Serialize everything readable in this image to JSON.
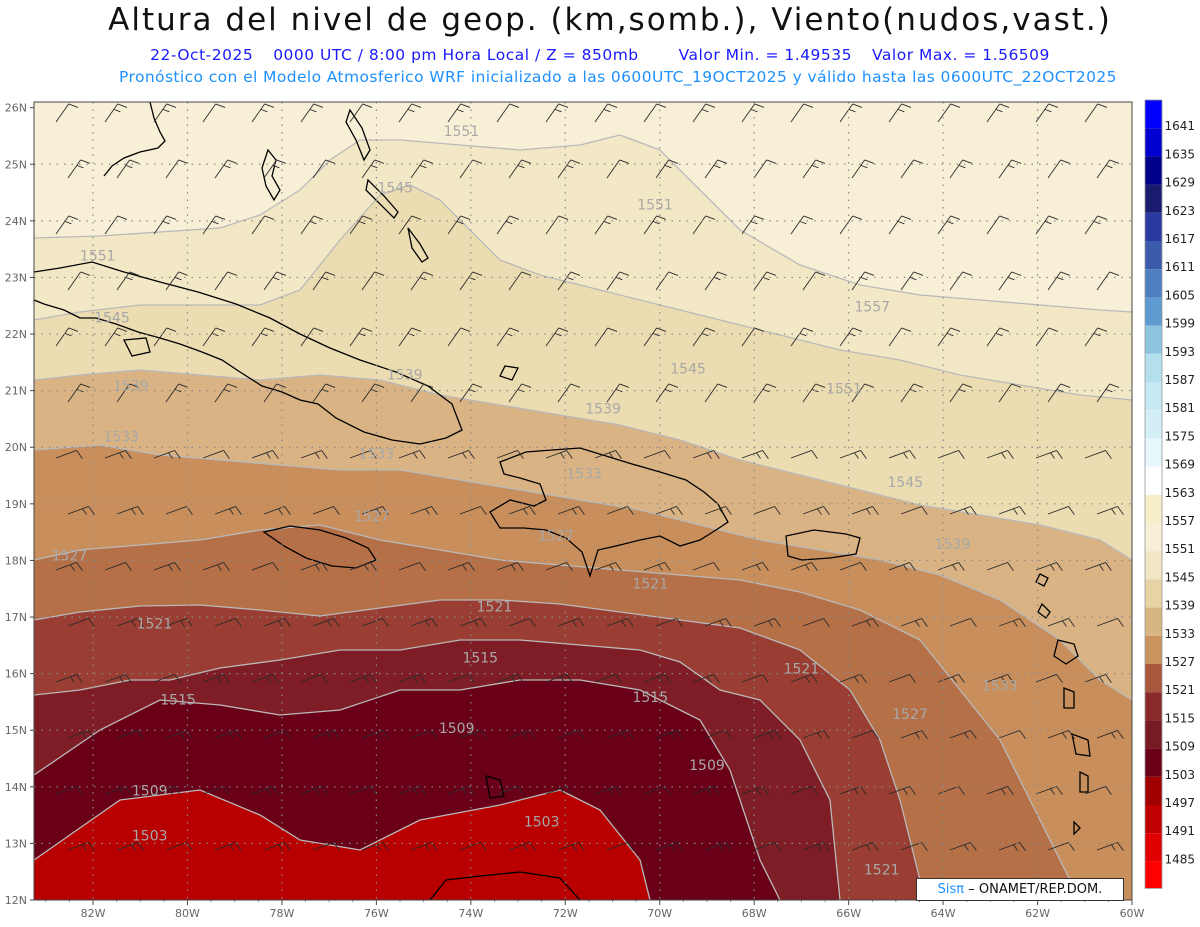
{
  "header": {
    "title": "Altura del nivel de geop. (km,somb.), Viento(nudos,vast.)",
    "date": "22-Oct-2025",
    "time_info": "0000 UTC / 8:00 pm Hora Local / Z = 850mb",
    "valor_min": "Valor Min. = 1.49535",
    "valor_max": "Valor Max. = 1.56509",
    "model_info": "Pronóstico con el Modelo Atmosferico WRF inicializado a las 0600UTC_19OCT2025 y válido hasta las  0600UTC_22OCT2025"
  },
  "map": {
    "x_ticks": [
      "82W",
      "80W",
      "78W",
      "76W",
      "74W",
      "72W",
      "70W",
      "68W",
      "66W",
      "64W",
      "62W",
      "60W"
    ],
    "y_ticks": [
      "26N",
      "25N",
      "24N",
      "23N",
      "22N",
      "21N",
      "20N",
      "19N",
      "18N",
      "17N",
      "16N",
      "15N",
      "14N",
      "13N",
      "12N"
    ],
    "contour_labels": [
      {
        "text": "1551",
        "lon": -74.2,
        "lat": 25.5
      },
      {
        "text": "1545",
        "lon": -75.6,
        "lat": 24.5
      },
      {
        "text": "1551",
        "lon": -70.1,
        "lat": 24.2
      },
      {
        "text": "1551",
        "lon": -81.9,
        "lat": 23.3
      },
      {
        "text": "1557",
        "lon": -65.5,
        "lat": 22.4
      },
      {
        "text": "1545",
        "lon": -81.6,
        "lat": 22.2
      },
      {
        "text": "1545",
        "lon": -69.4,
        "lat": 21.3
      },
      {
        "text": "1539",
        "lon": -75.4,
        "lat": 21.2
      },
      {
        "text": "1551",
        "lon": -66.1,
        "lat": 20.95
      },
      {
        "text": "1539",
        "lon": -81.2,
        "lat": 21.0
      },
      {
        "text": "1539",
        "lon": -71.2,
        "lat": 20.6
      },
      {
        "text": "1533",
        "lon": -81.4,
        "lat": 20.1
      },
      {
        "text": "1533",
        "lon": -76.0,
        "lat": 19.8
      },
      {
        "text": "1533",
        "lon": -71.6,
        "lat": 19.45
      },
      {
        "text": "1545",
        "lon": -64.8,
        "lat": 19.3
      },
      {
        "text": "1527",
        "lon": -76.1,
        "lat": 18.7
      },
      {
        "text": "1527",
        "lon": -72.2,
        "lat": 18.35
      },
      {
        "text": "1539",
        "lon": -63.8,
        "lat": 18.2
      },
      {
        "text": "1527",
        "lon": -82.5,
        "lat": 18.0
      },
      {
        "text": "1521",
        "lon": -70.2,
        "lat": 17.5
      },
      {
        "text": "1521",
        "lon": -73.5,
        "lat": 17.1
      },
      {
        "text": "1521",
        "lon": -80.7,
        "lat": 16.8
      },
      {
        "text": "1515",
        "lon": -73.8,
        "lat": 16.2
      },
      {
        "text": "1521",
        "lon": -67.0,
        "lat": 16.0
      },
      {
        "text": "1533",
        "lon": -62.8,
        "lat": 15.7
      },
      {
        "text": "1515",
        "lon": -80.2,
        "lat": 15.45
      },
      {
        "text": "1515",
        "lon": -70.2,
        "lat": 15.5
      },
      {
        "text": "1509",
        "lon": -74.3,
        "lat": 14.95
      },
      {
        "text": "1527",
        "lon": -64.7,
        "lat": 15.2
      },
      {
        "text": "1509",
        "lon": -69.0,
        "lat": 14.3
      },
      {
        "text": "1509",
        "lon": -80.8,
        "lat": 13.85
      },
      {
        "text": "1503",
        "lon": -72.5,
        "lat": 13.3
      },
      {
        "text": "1503",
        "lon": -80.8,
        "lat": 13.05
      },
      {
        "text": "1521",
        "lon": -65.3,
        "lat": 12.45
      }
    ]
  },
  "colorbar": {
    "levels": [
      "1641",
      "1635",
      "1629",
      "1623",
      "1617",
      "1611",
      "1605",
      "1599",
      "1593",
      "1587",
      "1581",
      "1575",
      "1569",
      "1563",
      "1557",
      "1551",
      "1545",
      "1539",
      "1533",
      "1527",
      "1521",
      "1515",
      "1509",
      "1503",
      "1497",
      "1491",
      "1485"
    ],
    "colors": [
      "#0000ff",
      "#0000d0",
      "#00008a",
      "#1a1a6e",
      "#2a3aa0",
      "#3a5aaa",
      "#4f7ec0",
      "#5f9ad0",
      "#8ec4e0",
      "#b4e0ee",
      "#c6e8f2",
      "#d4eef6",
      "#e6f6fa",
      "#ffffff",
      "#f6efc8",
      "#f7f0d6",
      "#f1e6c4",
      "#e8d3a6",
      "#d8b682",
      "#c8935c",
      "#a9573c",
      "#8a2a2c",
      "#771a24",
      "#6a0018",
      "#a00000",
      "#c00000",
      "#e00000"
    ],
    "bottom_color": "#ff0000"
  },
  "shading": {
    "colors": [
      "#b80000",
      "#6a0018",
      "#7f1d26",
      "#9a3e33",
      "#b67048",
      "#c88f5d",
      "#d9b384",
      "#ecdcb1",
      "#f3e8c6",
      "#f7f0d7",
      "#fbf6e3"
    ]
  },
  "credit": {
    "brand": "Sisπ",
    "text": "– ONAMET/REP.DOM."
  }
}
